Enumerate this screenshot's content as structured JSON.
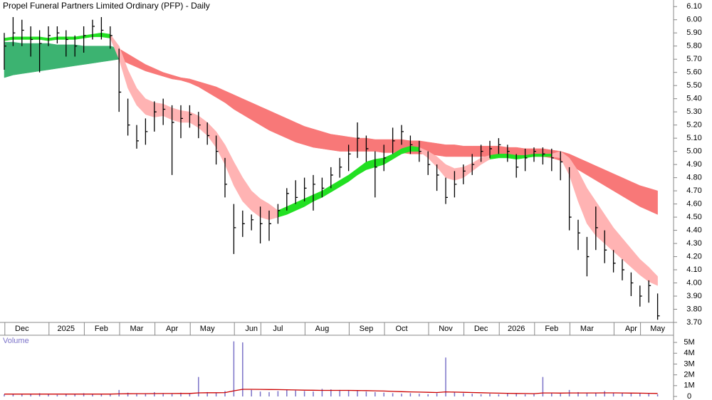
{
  "chart_data": {
    "type": "ohlc",
    "title": "Propel Funeral Partners Limited Ordinary (PFP) - Daily",
    "color": "#000000",
    "categories": [
      null,
      null,
      "Dec",
      null,
      null,
      null,
      null,
      "2025",
      null,
      null,
      null,
      "Feb",
      null,
      null,
      null,
      "Mar",
      null,
      null,
      null,
      "Apr",
      null,
      null,
      null,
      "May",
      null,
      null,
      null,
      null,
      "Jun",
      null,
      null,
      "Jul",
      null,
      null,
      null,
      null,
      "Aug",
      null,
      null,
      null,
      null,
      "Sep",
      null,
      null,
      null,
      "Oct",
      null,
      null,
      null,
      null,
      "Nov",
      null,
      null,
      null,
      "Dec",
      null,
      null,
      null,
      "2026",
      null,
      null,
      null,
      "Feb",
      null,
      null,
      null,
      "Mar",
      null,
      null,
      null,
      null,
      "Apr",
      null,
      null,
      "May"
    ],
    "high": [
      5.9,
      6.02,
      6.0,
      5.95,
      5.92,
      5.95,
      5.95,
      5.92,
      5.88,
      5.95,
      6.0,
      6.02,
      5.95,
      5.78,
      5.4,
      5.2,
      5.25,
      5.38,
      5.4,
      5.35,
      5.35,
      5.35,
      5.3,
      5.22,
      5.12,
      4.95,
      4.6,
      4.55,
      4.52,
      4.58,
      4.55,
      4.6,
      4.72,
      4.78,
      4.8,
      4.82,
      4.8,
      4.88,
      4.95,
      5.05,
      5.22,
      5.12,
      5.0,
      5.05,
      5.18,
      5.2,
      5.12,
      5.08,
      5.0,
      4.9,
      4.8,
      4.85,
      4.9,
      4.98,
      5.05,
      5.08,
      5.1,
      5.05,
      4.98,
      5.02,
      5.03,
      5.03,
      5.02,
      5.0,
      4.88,
      4.48,
      4.35,
      4.58,
      4.4,
      4.25,
      4.18,
      4.08,
      3.98,
      4.02,
      3.92
    ],
    "low": [
      5.62,
      5.8,
      5.8,
      5.72,
      5.6,
      5.8,
      5.82,
      5.72,
      5.72,
      5.75,
      5.85,
      5.85,
      5.78,
      5.3,
      5.12,
      5.02,
      5.05,
      5.15,
      5.2,
      4.82,
      5.1,
      5.18,
      5.1,
      5.05,
      4.9,
      4.65,
      4.22,
      4.35,
      4.4,
      4.3,
      4.32,
      4.45,
      4.55,
      4.6,
      4.62,
      4.55,
      4.65,
      4.72,
      4.8,
      4.85,
      4.95,
      4.92,
      4.65,
      4.85,
      4.98,
      5.05,
      4.98,
      4.92,
      4.82,
      4.7,
      4.6,
      4.65,
      4.75,
      4.82,
      4.92,
      4.95,
      4.98,
      4.92,
      4.8,
      4.85,
      4.92,
      4.9,
      4.85,
      4.78,
      4.4,
      4.25,
      4.05,
      4.25,
      4.15,
      4.08,
      4.02,
      3.9,
      3.82,
      3.85,
      3.72
    ],
    "close": [
      5.8,
      5.9,
      5.92,
      5.85,
      5.82,
      5.88,
      5.9,
      5.85,
      5.8,
      5.88,
      5.95,
      5.92,
      5.88,
      5.45,
      5.2,
      5.08,
      5.15,
      5.3,
      5.32,
      5.22,
      5.25,
      5.28,
      5.2,
      5.12,
      5.0,
      4.75,
      4.42,
      4.45,
      4.48,
      4.45,
      4.45,
      4.55,
      4.68,
      4.65,
      4.72,
      4.75,
      4.72,
      4.82,
      4.88,
      4.98,
      5.1,
      5.02,
      4.88,
      4.95,
      5.08,
      5.15,
      5.05,
      5.0,
      4.9,
      4.82,
      4.65,
      4.75,
      4.85,
      4.9,
      5.0,
      5.02,
      5.05,
      5.0,
      4.88,
      4.95,
      5.0,
      4.98,
      4.95,
      4.92,
      4.5,
      4.38,
      4.2,
      4.42,
      4.25,
      4.15,
      4.1,
      4.0,
      3.9,
      3.98,
      3.75
    ],
    "ribbons": [
      {
        "color": "#3cb371",
        "upper": [
          5.83,
          5.83,
          5.82,
          5.82,
          5.82,
          5.82,
          5.81,
          5.81,
          5.81,
          5.8,
          5.8,
          5.8,
          5.8,
          5.78,
          null,
          null,
          null,
          null,
          null,
          null,
          null,
          null,
          null,
          null,
          null,
          null,
          null,
          null,
          null,
          null,
          null,
          null,
          null,
          null,
          null,
          null,
          null,
          null,
          null,
          null,
          null,
          null,
          null,
          null,
          null,
          null,
          null,
          null,
          null,
          null,
          null,
          null,
          null,
          null,
          null,
          null,
          null,
          null,
          null,
          null,
          null,
          null,
          null,
          null,
          null,
          null,
          null,
          null,
          null,
          null,
          null,
          null,
          null,
          null,
          null
        ],
        "lower": [
          5.56,
          5.58,
          5.59,
          5.6,
          5.61,
          5.62,
          5.63,
          5.64,
          5.65,
          5.66,
          5.67,
          5.68,
          5.69,
          5.7,
          null,
          null,
          null,
          null,
          null,
          null,
          null,
          null,
          null,
          null,
          null,
          null,
          null,
          null,
          null,
          null,
          null,
          null,
          null,
          null,
          null,
          null,
          null,
          null,
          null,
          null,
          null,
          null,
          null,
          null,
          null,
          null,
          null,
          null,
          null,
          null,
          null,
          null,
          null,
          null,
          null,
          null,
          null,
          null,
          null,
          null,
          null,
          null,
          null,
          null,
          null,
          null,
          null,
          null,
          null,
          null,
          null,
          null,
          null,
          null,
          null
        ]
      },
      {
        "color": "#f87878",
        "upper": [
          null,
          null,
          null,
          null,
          null,
          null,
          null,
          null,
          null,
          null,
          null,
          null,
          null,
          5.78,
          5.74,
          5.7,
          5.66,
          5.63,
          5.6,
          5.58,
          5.56,
          5.55,
          5.53,
          5.51,
          5.49,
          5.46,
          5.43,
          5.4,
          5.37,
          5.34,
          5.31,
          5.28,
          5.25,
          5.22,
          5.19,
          5.17,
          5.15,
          5.13,
          5.12,
          5.11,
          5.1,
          5.1,
          5.09,
          5.09,
          5.09,
          5.09,
          5.08,
          5.08,
          5.07,
          5.06,
          5.05,
          5.05,
          5.04,
          5.04,
          5.04,
          5.04,
          5.04,
          5.03,
          5.03,
          5.02,
          5.02,
          5.02,
          5.01,
          5.0,
          4.98,
          4.95,
          4.92,
          4.89,
          4.86,
          4.83,
          4.8,
          4.77,
          4.74,
          4.72,
          4.7
        ],
        "lower": [
          null,
          null,
          null,
          null,
          null,
          null,
          null,
          null,
          null,
          null,
          null,
          null,
          null,
          5.7,
          5.67,
          5.64,
          5.61,
          5.59,
          5.57,
          5.55,
          5.54,
          5.52,
          5.49,
          5.45,
          5.41,
          5.37,
          5.32,
          5.28,
          5.24,
          5.2,
          5.16,
          5.13,
          5.1,
          5.07,
          5.05,
          5.03,
          5.02,
          5.01,
          5.0,
          5.0,
          5.0,
          5.0,
          5.0,
          4.99,
          4.99,
          4.99,
          4.98,
          4.98,
          4.98,
          4.97,
          4.96,
          4.96,
          4.96,
          4.96,
          4.96,
          4.96,
          4.96,
          4.96,
          4.96,
          4.96,
          4.96,
          4.96,
          4.95,
          4.93,
          4.9,
          4.86,
          4.82,
          4.78,
          4.74,
          4.7,
          4.66,
          4.62,
          4.58,
          4.55,
          4.52
        ]
      },
      {
        "color": "#ffb3b3",
        "upper": [
          null,
          null,
          null,
          null,
          null,
          null,
          null,
          null,
          null,
          null,
          null,
          null,
          5.89,
          5.8,
          5.62,
          5.48,
          5.4,
          5.37,
          5.36,
          5.33,
          5.31,
          5.3,
          5.27,
          5.22,
          5.15,
          5.05,
          4.92,
          4.8,
          4.7,
          4.64,
          4.6,
          4.55,
          null,
          null,
          null,
          null,
          null,
          null,
          null,
          null,
          null,
          null,
          null,
          null,
          null,
          null,
          null,
          5.03,
          5.0,
          4.96,
          4.9,
          4.87,
          4.88,
          4.91,
          4.95,
          4.97,
          null,
          null,
          null,
          null,
          null,
          null,
          4.98,
          5.0,
          4.95,
          4.85,
          4.72,
          4.62,
          4.52,
          4.42,
          4.34,
          4.26,
          4.18,
          4.12,
          4.05
        ],
        "lower": [
          null,
          null,
          null,
          null,
          null,
          null,
          null,
          null,
          null,
          null,
          null,
          null,
          5.86,
          5.7,
          5.48,
          5.35,
          5.28,
          5.26,
          5.27,
          5.24,
          5.22,
          5.22,
          5.18,
          5.12,
          5.03,
          4.9,
          4.74,
          4.62,
          4.55,
          4.5,
          4.48,
          4.5,
          null,
          null,
          null,
          null,
          null,
          null,
          null,
          null,
          null,
          null,
          null,
          null,
          null,
          null,
          null,
          5.0,
          4.95,
          4.88,
          4.8,
          4.78,
          4.8,
          4.85,
          4.9,
          4.94,
          null,
          null,
          null,
          null,
          null,
          null,
          4.96,
          4.95,
          4.82,
          4.62,
          4.45,
          4.36,
          4.3,
          4.24,
          4.18,
          4.12,
          4.06,
          4.01,
          3.98
        ]
      },
      {
        "color": "#22e022",
        "upper": [
          5.86,
          5.87,
          5.87,
          5.87,
          5.87,
          5.86,
          5.87,
          5.87,
          5.87,
          5.88,
          5.89,
          5.9,
          5.89,
          null,
          null,
          null,
          null,
          null,
          null,
          null,
          null,
          null,
          null,
          null,
          null,
          null,
          null,
          null,
          null,
          null,
          null,
          4.55,
          4.58,
          4.61,
          4.64,
          4.67,
          4.7,
          4.74,
          4.78,
          4.82,
          4.87,
          4.92,
          4.94,
          4.95,
          4.98,
          5.02,
          5.04,
          5.03,
          null,
          null,
          null,
          null,
          null,
          null,
          null,
          4.97,
          4.98,
          4.98,
          4.97,
          4.97,
          4.98,
          4.98,
          4.98,
          null,
          null,
          null,
          null,
          null,
          null,
          null,
          null,
          null,
          null,
          null,
          null
        ],
        "lower": [
          5.84,
          5.85,
          5.85,
          5.85,
          5.85,
          5.84,
          5.85,
          5.85,
          5.85,
          5.86,
          5.87,
          5.87,
          5.86,
          null,
          null,
          null,
          null,
          null,
          null,
          null,
          null,
          null,
          null,
          null,
          null,
          null,
          null,
          null,
          null,
          null,
          null,
          4.5,
          4.52,
          4.55,
          4.58,
          4.62,
          4.65,
          4.69,
          4.73,
          4.77,
          4.82,
          4.86,
          4.88,
          4.9,
          4.94,
          4.98,
          5.0,
          5.0,
          null,
          null,
          null,
          null,
          null,
          null,
          null,
          4.94,
          4.95,
          4.95,
          4.94,
          4.95,
          4.96,
          4.96,
          4.96,
          null,
          null,
          null,
          null,
          null,
          null,
          null,
          null,
          null,
          null,
          null,
          null
        ]
      }
    ],
    "ylim": [
      3.7,
      6.15
    ],
    "yticks": [
      {
        "value": 3.7,
        "label": "3.70"
      },
      {
        "value": 3.8,
        "label": "3.80"
      },
      {
        "value": 3.9,
        "label": "3.90"
      },
      {
        "value": 4.0,
        "label": "4.00"
      },
      {
        "value": 4.1,
        "label": "4.10"
      },
      {
        "value": 4.2,
        "label": "4.20"
      },
      {
        "value": 4.3,
        "label": "4.30"
      },
      {
        "value": 4.4,
        "label": "4.40"
      },
      {
        "value": 4.5,
        "label": "4.50"
      },
      {
        "value": 4.6,
        "label": "4.60"
      },
      {
        "value": 4.7,
        "label": "4.70"
      },
      {
        "value": 4.8,
        "label": "4.80"
      },
      {
        "value": 4.9,
        "label": "4.90"
      },
      {
        "value": 5.0,
        "label": "5.00"
      },
      {
        "value": 5.1,
        "label": "5.10"
      },
      {
        "value": 5.2,
        "label": "5.20"
      },
      {
        "value": 5.3,
        "label": "5.30"
      },
      {
        "value": 5.4,
        "label": "5.40"
      },
      {
        "value": 5.5,
        "label": "5.50"
      },
      {
        "value": 5.6,
        "label": "5.60"
      },
      {
        "value": 5.7,
        "label": "5.70"
      },
      {
        "value": 5.8,
        "label": "5.80"
      },
      {
        "value": 5.9,
        "label": "5.90"
      },
      {
        "value": 6.0,
        "label": "6.00"
      },
      {
        "value": 6.1,
        "label": "6.10"
      }
    ],
    "volume": {
      "label": "Volume",
      "color": "#7b72c8",
      "values": [
        200000,
        250000,
        180000,
        220000,
        300000,
        200000,
        150000,
        250000,
        200000,
        300000,
        250000,
        200000,
        180000,
        600000,
        350000,
        300000,
        250000,
        400000,
        300000,
        250000,
        350000,
        300000,
        1800000,
        400000,
        350000,
        500000,
        5100000,
        5000000,
        600000,
        450000,
        400000,
        500000,
        600000,
        550000,
        500000,
        450000,
        700000,
        650000,
        600000,
        550000,
        500000,
        450000,
        400000,
        350000,
        300000,
        250000,
        300000,
        250000,
        200000,
        300000,
        3600000,
        400000,
        300000,
        250000,
        200000,
        250000,
        200000,
        300000,
        250000,
        200000,
        250000,
        1800000,
        300000,
        250000,
        600000,
        400000,
        350000,
        300000,
        500000,
        350000,
        300000,
        350000,
        300000,
        250000,
        200000
      ],
      "average": {
        "color": "#cc0000",
        "values": [
          220000,
          220000,
          215000,
          215000,
          220000,
          220000,
          215000,
          215000,
          215000,
          220000,
          220000,
          220000,
          215000,
          240000,
          250000,
          255000,
          255000,
          265000,
          270000,
          270000,
          275000,
          275000,
          330000,
          340000,
          345000,
          355000,
          520000,
          660000,
          660000,
          650000,
          640000,
          630000,
          620000,
          600000,
          580000,
          570000,
          560000,
          560000,
          560000,
          560000,
          550000,
          540000,
          520000,
          500000,
          470000,
          440000,
          420000,
          400000,
          380000,
          360000,
          420000,
          400000,
          380000,
          360000,
          340000,
          320000,
          300000,
          290000,
          280000,
          270000,
          260000,
          320000,
          320000,
          310000,
          320000,
          320000,
          320000,
          320000,
          330000,
          330000,
          320000,
          310000,
          300000,
          290000,
          280000
        ]
      },
      "ylim": [
        0,
        5600000
      ],
      "yticks": [
        0,
        {
          "value": 1000000,
          "label": "1M"
        },
        {
          "value": 2000000,
          "label": "2M"
        },
        {
          "value": 3000000,
          "label": "3M"
        },
        {
          "value": 4000000,
          "label": "4M"
        },
        {
          "value": 5000000,
          "label": "5M"
        }
      ]
    }
  }
}
